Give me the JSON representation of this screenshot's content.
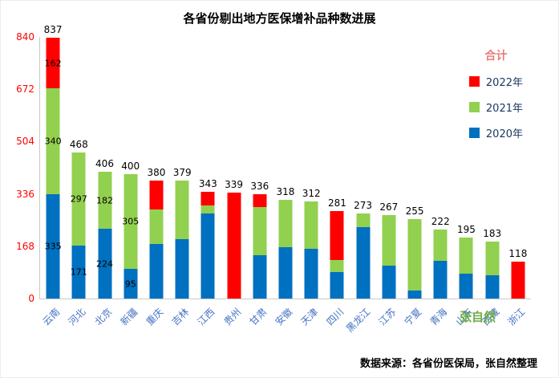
{
  "title": "各省份剔出地方医保增补品种数进展",
  "source_note": "数据来源：各省份医保局，张自然整理",
  "watermark": "张自然",
  "legend": {
    "title": "合计",
    "items": [
      {
        "label": "2022年",
        "color": "#ff0000"
      },
      {
        "label": "2021年",
        "color": "#92d050"
      },
      {
        "label": "2020年",
        "color": "#0070c0"
      }
    ]
  },
  "chart_data": {
    "type": "bar",
    "stacked": true,
    "title": "各省份剔出地方医保增补品种数进展",
    "ylim": [
      0,
      840
    ],
    "yticks": [
      0,
      168,
      336,
      504,
      672,
      840
    ],
    "grid": false,
    "legend_position": "top-right",
    "categories": [
      "云南",
      "河北",
      "北京",
      "新疆",
      "重庆",
      "吉林",
      "江西",
      "贵州",
      "甘肃",
      "安徽",
      "天津",
      "四川",
      "黑龙江",
      "江苏",
      "宁夏",
      "青海",
      "山东",
      "西藏",
      "浙江"
    ],
    "series": [
      {
        "name": "2020年",
        "key": "2020",
        "color": "#0070c0",
        "values": [
          335,
          171,
          224,
          95,
          175,
          190,
          273,
          0,
          140,
          165,
          160,
          85,
          230,
          105,
          25,
          120,
          80,
          75,
          0
        ]
      },
      {
        "name": "2021年",
        "key": "2021",
        "color": "#92d050",
        "values": [
          340,
          297,
          182,
          305,
          110,
          189,
          25,
          0,
          155,
          153,
          152,
          40,
          43,
          162,
          230,
          102,
          115,
          108,
          0
        ]
      },
      {
        "name": "2022年",
        "key": "2022",
        "color": "#ff0000",
        "values": [
          162,
          0,
          0,
          0,
          95,
          0,
          45,
          339,
          41,
          0,
          0,
          156,
          0,
          0,
          0,
          0,
          0,
          0,
          118
        ]
      }
    ],
    "totals": [
      837,
      468,
      406,
      400,
      380,
      379,
      343,
      339,
      336,
      318,
      312,
      281,
      273,
      267,
      255,
      222,
      195,
      183,
      118
    ],
    "segment_labels": {
      "0": {
        "2020": "335",
        "2021": "340",
        "2022": "162"
      },
      "1": {
        "2020": "171",
        "2021": "297"
      },
      "2": {
        "2020": "224",
        "2021": "182"
      },
      "3": {
        "2020": "95",
        "2021": "305"
      }
    }
  }
}
